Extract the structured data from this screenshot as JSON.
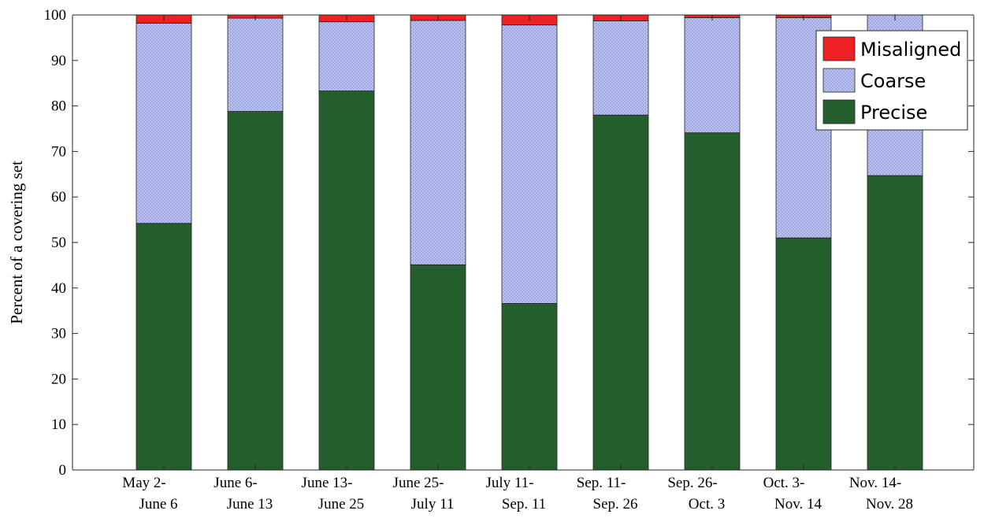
{
  "chart_data": {
    "type": "bar",
    "stacked": true,
    "categories": [
      [
        "May 2-",
        "June 6"
      ],
      [
        "June 6-",
        "June 13"
      ],
      [
        "June 13-",
        "June 25"
      ],
      [
        "June 25-",
        "July 11"
      ],
      [
        "July 11-",
        "Sep. 11"
      ],
      [
        "Sep. 11-",
        "Sep. 26"
      ],
      [
        "Sep. 26-",
        "Oct. 3"
      ],
      [
        "Oct. 3-",
        "Nov. 14"
      ],
      [
        "Nov. 14-",
        "Nov. 28"
      ]
    ],
    "series": [
      {
        "name": "Precise",
        "color": "#255e2d",
        "values": [
          54.2,
          78.8,
          83.3,
          45.1,
          36.6,
          78.0,
          74.1,
          51.0,
          64.7
        ]
      },
      {
        "name": "Coarse",
        "color": "#a9b2e8",
        "pattern": "dotted",
        "values": [
          44.0,
          20.5,
          15.2,
          53.7,
          61.2,
          20.7,
          25.3,
          48.4,
          35.3
        ]
      },
      {
        "name": "Misaligned",
        "color": "#ee2024",
        "values": [
          1.8,
          0.7,
          1.5,
          1.2,
          2.2,
          1.3,
          0.6,
          0.6,
          0.0
        ]
      }
    ],
    "xlabel": "",
    "ylabel": "Percent of a covering set",
    "ylim": [
      0,
      100
    ],
    "yticks": [
      0,
      10,
      20,
      30,
      40,
      50,
      60,
      70,
      80,
      90,
      100
    ],
    "legend": {
      "placement": "top-right",
      "order": [
        "Misaligned",
        "Coarse",
        "Precise"
      ]
    },
    "grid": false
  }
}
